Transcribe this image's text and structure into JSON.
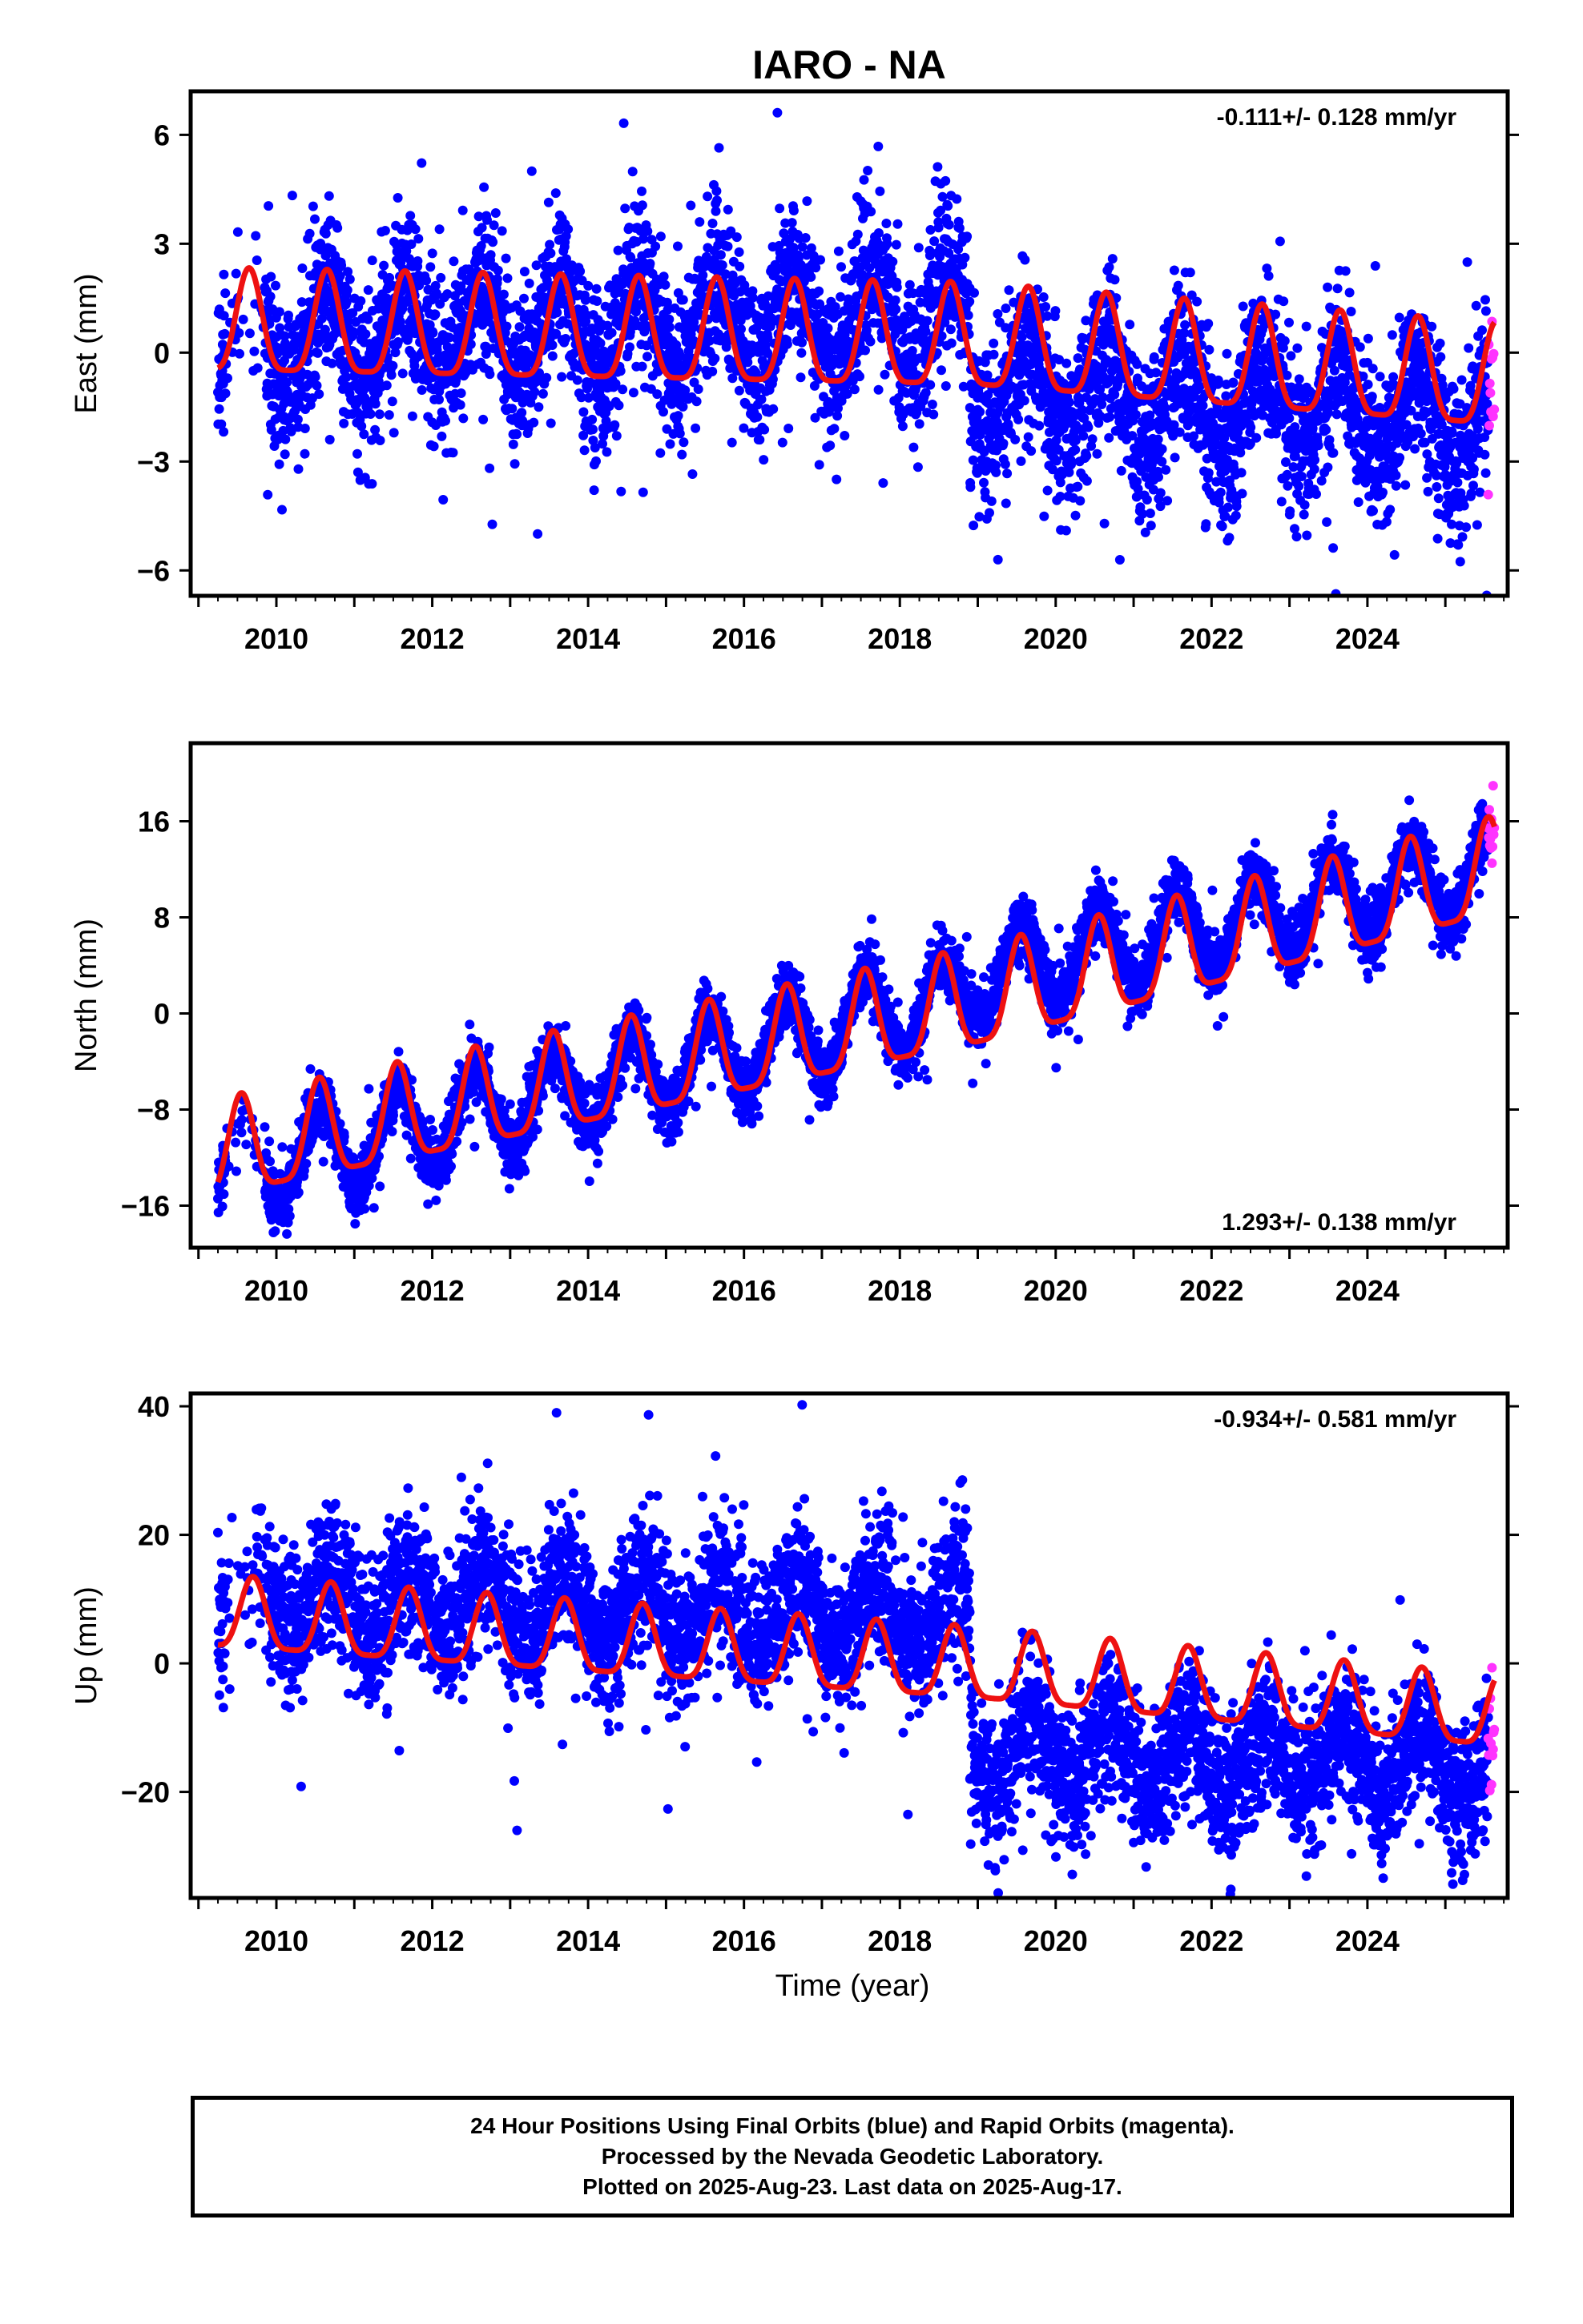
{
  "title": "IARO - NA",
  "xlabel": "Time (year)",
  "x_ticks": [
    "2010",
    "2012",
    "2014",
    "2016",
    "2018",
    "2020",
    "2022",
    "2024"
  ],
  "colors": {
    "final_orbits": "#0000ff",
    "rapid_orbits": "#ff33ff",
    "model": "#ee1111",
    "frame": "#000000"
  },
  "caption": {
    "line1": "24 Hour Positions Using Final Orbits (blue) and Rapid Orbits (magenta).",
    "line2": "Processed by the Nevada Geodetic Laboratory.",
    "line3": "Plotted on 2025-Aug-23. Last data on 2025-Aug-17."
  },
  "chart_data": [
    {
      "type": "scatter",
      "name": "east",
      "ylabel": "East (mm)",
      "rate_label": "-0.111+/- 0.128 mm/yr",
      "rate_position": "top-right",
      "xlim": [
        2008.9,
        2025.8
      ],
      "ylim": [
        -6.7,
        7.2
      ],
      "yticks": [
        6,
        3,
        0,
        -3,
        -6
      ],
      "ytick_labels": [
        "6",
        "3",
        "0",
        "−3",
        "−6"
      ],
      "data_span": [
        2009.25,
        2025.63
      ],
      "rapid_span": [
        2025.55,
        2025.63
      ],
      "offset_epoch": 2018.9,
      "offset": -3.1,
      "trend_before": {
        "at_2009_25": 0.3,
        "at_2018_9": 1.0
      },
      "trend_after": {
        "at_2018_9": -1.0,
        "at_2025_63": -1.9
      },
      "scatter_noise_mm": 1.1,
      "model_amplitude": 1.4,
      "model_peak_phase": 0.65,
      "model_baseline": {
        "start": 0.6,
        "mid_2018_9": 0.2,
        "end": -0.9
      }
    },
    {
      "type": "scatter",
      "name": "north",
      "ylabel": "North (mm)",
      "rate_label": "1.293+/- 0.138 mm/yr",
      "rate_position": "bottom-right",
      "xlim": [
        2008.9,
        2025.8
      ],
      "ylim": [
        -19.5,
        22.5
      ],
      "yticks": [
        16,
        8,
        0,
        -8,
        -16
      ],
      "ytick_labels": [
        "16",
        "8",
        "0",
        "−8",
        "−16"
      ],
      "data_span": [
        2009.25,
        2025.63
      ],
      "rapid_span": [
        2025.55,
        2025.63
      ],
      "offset_epoch": 2018.9,
      "offset": 0,
      "trend_before": {
        "at_2009_25": -13.5,
        "at_2018_9": 1.5
      },
      "trend_after": {
        "at_2018_9": 3.0,
        "at_2025_63": 12.0
      },
      "scatter_noise_mm": 1.3,
      "model_amplitude": 4.0,
      "model_peak_phase": 0.55,
      "model_baseline": {
        "start": -12.0,
        "mid_2018_9": 0.5,
        "end": 11.5
      }
    },
    {
      "type": "scatter",
      "name": "up",
      "ylabel": "Up (mm)",
      "rate_label": "-0.934+/- 0.581 mm/yr",
      "rate_position": "top-right",
      "xlim": [
        2008.9,
        2025.8
      ],
      "ylim": [
        -36.5,
        42
      ],
      "yticks": [
        40,
        20,
        0,
        -20
      ],
      "ytick_labels": [
        "40",
        "20",
        "0",
        "−20"
      ],
      "data_span": [
        2009.25,
        2025.63
      ],
      "rapid_span": [
        2025.55,
        2025.63
      ],
      "offset_epoch": 2018.9,
      "offset": -20.0,
      "trend_before": {
        "at_2009_25": 10.0,
        "at_2018_9": 7.0
      },
      "trend_after": {
        "at_2018_9": -14.0,
        "at_2025_63": -16.0
      },
      "scatter_noise_mm": 5.5,
      "model_amplitude": 5.5,
      "model_peak_phase": 0.7,
      "model_baseline": {
        "start": 7.0,
        "mid_2018_9": -1.0,
        "end": -8.5
      }
    }
  ]
}
